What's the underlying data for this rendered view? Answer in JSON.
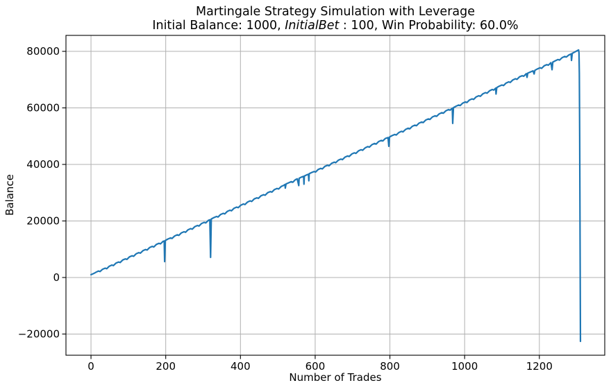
{
  "chart_data": {
    "type": "line",
    "title": "Martingale Strategy Simulation with Leverage",
    "subtitle": "Initial Balance: 1000, InitialBet : 100, Win Probability: 60.0%",
    "subtitle_parts": {
      "prefix": "Initial Balance: 1000, ",
      "math_italic": "InitialBet",
      "math_upright": " : 100",
      "suffix": ", Win Probability: 60.0%"
    },
    "xlabel": "Number of Trades",
    "ylabel": "Balance",
    "xlim": [
      -67,
      1375
    ],
    "ylim": [
      -27500,
      85650
    ],
    "xticks": [
      0,
      200,
      400,
      600,
      800,
      1000,
      1200
    ],
    "yticks": [
      -20000,
      0,
      20000,
      40000,
      60000,
      80000
    ],
    "grid": true,
    "legend": "none",
    "line_color": "#1f77b4",
    "grid_color": "#b0b0b0",
    "spine_color": "#000000",
    "background_color": "#ffffff",
    "series": [
      {
        "name": "balance",
        "points": [
          [
            0,
            1000
          ],
          [
            7,
            1400
          ],
          [
            14,
            1900
          ],
          [
            20,
            2300
          ],
          [
            24,
            2100
          ],
          [
            31,
            2900
          ],
          [
            38,
            3300
          ],
          [
            42,
            3100
          ],
          [
            49,
            4000
          ],
          [
            56,
            4400
          ],
          [
            60,
            4200
          ],
          [
            67,
            5100
          ],
          [
            74,
            5500
          ],
          [
            78,
            5300
          ],
          [
            85,
            6200
          ],
          [
            92,
            6600
          ],
          [
            96,
            6400
          ],
          [
            103,
            7300
          ],
          [
            110,
            7700
          ],
          [
            114,
            7500
          ],
          [
            121,
            8400
          ],
          [
            128,
            8800
          ],
          [
            132,
            8600
          ],
          [
            139,
            9500
          ],
          [
            146,
            9900
          ],
          [
            150,
            9700
          ],
          [
            157,
            10600
          ],
          [
            164,
            11000
          ],
          [
            168,
            10800
          ],
          [
            175,
            11700
          ],
          [
            182,
            12100
          ],
          [
            186,
            11900
          ],
          [
            193,
            12800
          ],
          [
            196,
            12900
          ],
          [
            197,
            5600
          ],
          [
            199,
            13100
          ],
          [
            206,
            13600
          ],
          [
            213,
            14000
          ],
          [
            217,
            13800
          ],
          [
            224,
            14700
          ],
          [
            231,
            15100
          ],
          [
            235,
            14900
          ],
          [
            242,
            15800
          ],
          [
            249,
            16200
          ],
          [
            253,
            16000
          ],
          [
            260,
            16900
          ],
          [
            267,
            17300
          ],
          [
            271,
            17100
          ],
          [
            278,
            18000
          ],
          [
            285,
            18400
          ],
          [
            289,
            18200
          ],
          [
            296,
            19100
          ],
          [
            303,
            19500
          ],
          [
            307,
            19300
          ],
          [
            314,
            20200
          ],
          [
            318,
            20400
          ],
          [
            320,
            7100
          ],
          [
            322,
            20700
          ],
          [
            329,
            21200
          ],
          [
            336,
            21600
          ],
          [
            340,
            21400
          ],
          [
            347,
            22300
          ],
          [
            354,
            22700
          ],
          [
            358,
            22500
          ],
          [
            365,
            23400
          ],
          [
            372,
            23800
          ],
          [
            376,
            23600
          ],
          [
            383,
            24500
          ],
          [
            390,
            24900
          ],
          [
            394,
            24700
          ],
          [
            401,
            25600
          ],
          [
            408,
            26000
          ],
          [
            412,
            25800
          ],
          [
            419,
            26700
          ],
          [
            426,
            27100
          ],
          [
            430,
            26900
          ],
          [
            437,
            27800
          ],
          [
            444,
            28200
          ],
          [
            448,
            28000
          ],
          [
            455,
            28900
          ],
          [
            462,
            29300
          ],
          [
            466,
            29100
          ],
          [
            473,
            30000
          ],
          [
            480,
            30400
          ],
          [
            484,
            30200
          ],
          [
            491,
            31100
          ],
          [
            498,
            31500
          ],
          [
            502,
            31300
          ],
          [
            509,
            32200
          ],
          [
            516,
            32600
          ],
          [
            519,
            32900
          ],
          [
            520,
            31600
          ],
          [
            522,
            33100
          ],
          [
            529,
            33500
          ],
          [
            536,
            33900
          ],
          [
            540,
            33700
          ],
          [
            547,
            34600
          ],
          [
            552,
            34900
          ],
          [
            556,
            32500
          ],
          [
            557,
            35100
          ],
          [
            563,
            35500
          ],
          [
            569,
            35800
          ],
          [
            570,
            33000
          ],
          [
            571,
            35900
          ],
          [
            577,
            36300
          ],
          [
            582,
            36500
          ],
          [
            583,
            34200
          ],
          [
            584,
            36700
          ],
          [
            590,
            37100
          ],
          [
            597,
            37500
          ],
          [
            601,
            37300
          ],
          [
            608,
            38200
          ],
          [
            615,
            38600
          ],
          [
            619,
            38400
          ],
          [
            626,
            39300
          ],
          [
            633,
            39700
          ],
          [
            637,
            39500
          ],
          [
            644,
            40400
          ],
          [
            651,
            40800
          ],
          [
            655,
            40600
          ],
          [
            662,
            41500
          ],
          [
            669,
            41900
          ],
          [
            673,
            41700
          ],
          [
            680,
            42600
          ],
          [
            687,
            43000
          ],
          [
            691,
            42800
          ],
          [
            698,
            43700
          ],
          [
            705,
            44100
          ],
          [
            709,
            43900
          ],
          [
            716,
            44800
          ],
          [
            723,
            45200
          ],
          [
            727,
            45000
          ],
          [
            734,
            45900
          ],
          [
            741,
            46300
          ],
          [
            745,
            46100
          ],
          [
            752,
            47000
          ],
          [
            759,
            47400
          ],
          [
            763,
            47200
          ],
          [
            770,
            48100
          ],
          [
            777,
            48500
          ],
          [
            781,
            48300
          ],
          [
            788,
            49200
          ],
          [
            795,
            49500
          ],
          [
            797,
            46400
          ],
          [
            799,
            49700
          ],
          [
            806,
            50200
          ],
          [
            813,
            50600
          ],
          [
            817,
            50400
          ],
          [
            824,
            51300
          ],
          [
            831,
            51700
          ],
          [
            835,
            51500
          ],
          [
            842,
            52400
          ],
          [
            849,
            52800
          ],
          [
            853,
            52600
          ],
          [
            860,
            53500
          ],
          [
            867,
            53900
          ],
          [
            871,
            53700
          ],
          [
            878,
            54600
          ],
          [
            885,
            55000
          ],
          [
            889,
            54800
          ],
          [
            896,
            55700
          ],
          [
            903,
            56100
          ],
          [
            907,
            55900
          ],
          [
            914,
            56800
          ],
          [
            921,
            57200
          ],
          [
            925,
            57000
          ],
          [
            932,
            57900
          ],
          [
            939,
            58300
          ],
          [
            943,
            58100
          ],
          [
            950,
            59000
          ],
          [
            957,
            59400
          ],
          [
            961,
            59200
          ],
          [
            967,
            59900
          ],
          [
            968,
            54500
          ],
          [
            970,
            60100
          ],
          [
            977,
            60600
          ],
          [
            984,
            61000
          ],
          [
            988,
            60800
          ],
          [
            995,
            61700
          ],
          [
            1002,
            62100
          ],
          [
            1006,
            61900
          ],
          [
            1013,
            62800
          ],
          [
            1020,
            63200
          ],
          [
            1024,
            63000
          ],
          [
            1031,
            63900
          ],
          [
            1038,
            64300
          ],
          [
            1042,
            64100
          ],
          [
            1049,
            65000
          ],
          [
            1056,
            65400
          ],
          [
            1060,
            65200
          ],
          [
            1067,
            66100
          ],
          [
            1074,
            66500
          ],
          [
            1078,
            66300
          ],
          [
            1083,
            67000
          ],
          [
            1084,
            64900
          ],
          [
            1086,
            67200
          ],
          [
            1093,
            67700
          ],
          [
            1100,
            68100
          ],
          [
            1104,
            67900
          ],
          [
            1111,
            68800
          ],
          [
            1118,
            69200
          ],
          [
            1122,
            69000
          ],
          [
            1129,
            69900
          ],
          [
            1136,
            70300
          ],
          [
            1140,
            70100
          ],
          [
            1147,
            71000
          ],
          [
            1154,
            71400
          ],
          [
            1158,
            71200
          ],
          [
            1165,
            72100
          ],
          [
            1167,
            70800
          ],
          [
            1169,
            72300
          ],
          [
            1176,
            72700
          ],
          [
            1183,
            73100
          ],
          [
            1186,
            72000
          ],
          [
            1188,
            73300
          ],
          [
            1195,
            73800
          ],
          [
            1202,
            74200
          ],
          [
            1206,
            74000
          ],
          [
            1213,
            74900
          ],
          [
            1220,
            75300
          ],
          [
            1224,
            75100
          ],
          [
            1231,
            76000
          ],
          [
            1234,
            73500
          ],
          [
            1236,
            76200
          ],
          [
            1243,
            76700
          ],
          [
            1250,
            77100
          ],
          [
            1254,
            76900
          ],
          [
            1261,
            77800
          ],
          [
            1268,
            78200
          ],
          [
            1272,
            78000
          ],
          [
            1279,
            78700
          ],
          [
            1285,
            79100
          ],
          [
            1286,
            76800
          ],
          [
            1288,
            79300
          ],
          [
            1294,
            79700
          ],
          [
            1298,
            80000
          ],
          [
            1302,
            80300
          ],
          [
            1305,
            80500
          ],
          [
            1306,
            79500
          ],
          [
            1307,
            72000
          ],
          [
            1308,
            50000
          ],
          [
            1309,
            10000
          ],
          [
            1310,
            -22600
          ]
        ]
      }
    ]
  }
}
